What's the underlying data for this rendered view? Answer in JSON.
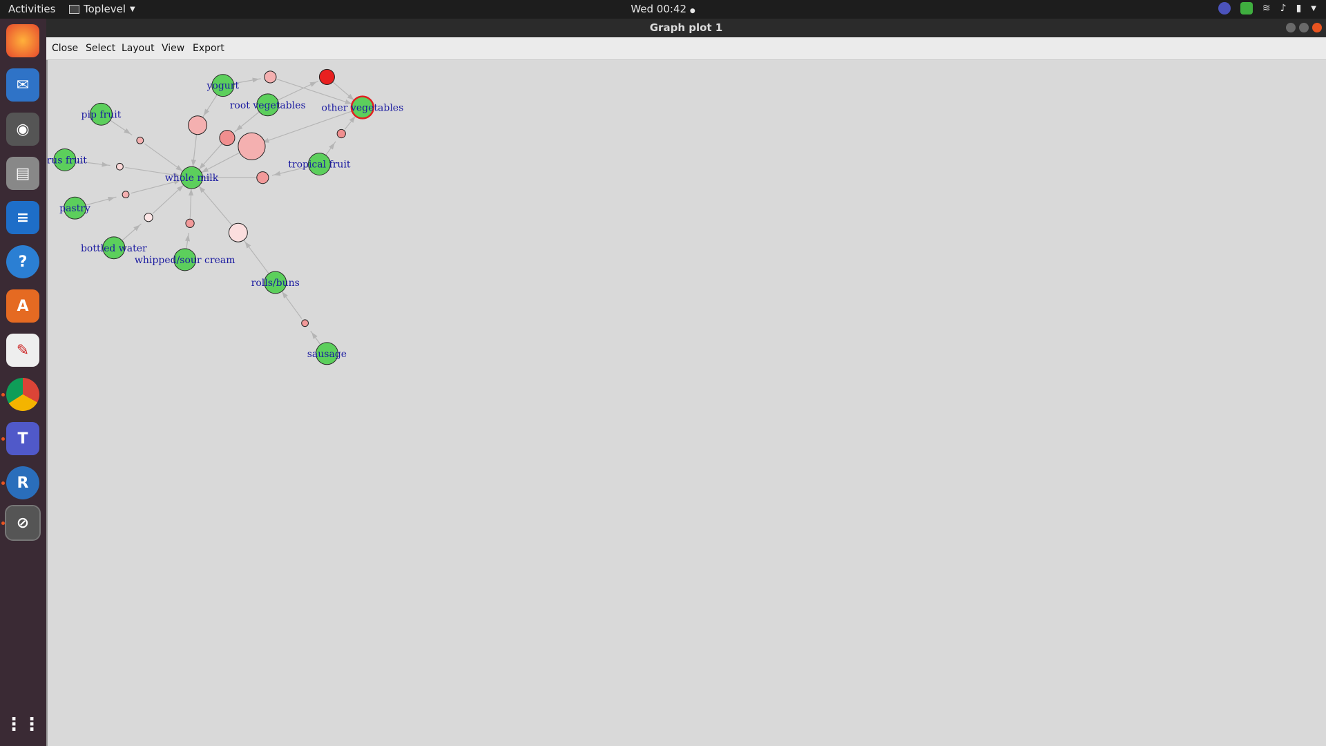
{
  "topbar": {
    "activities": "Activities",
    "app_name": "Toplevel",
    "clock": "Wed 00:42"
  },
  "dock": {
    "items": [
      "firefox-icon",
      "thunderbird-icon",
      "rhythmbox-icon",
      "files-icon",
      "writer-icon",
      "help-icon",
      "software-icon",
      "document-viewer-icon",
      "chrome-icon",
      "teams-icon",
      "r-icon",
      "graph-window-icon"
    ]
  },
  "window": {
    "title": "Graph plot 1",
    "menu": [
      "Close",
      "Select",
      "Layout",
      "View",
      "Export"
    ]
  },
  "graph": {
    "items": [
      {
        "label": "yogurt"
      },
      {
        "label": "root vegetables"
      },
      {
        "label": "other vegetables"
      },
      {
        "label": "pip fruit"
      },
      {
        "label": "tropical fruit"
      },
      {
        "label": "citrus fruit"
      },
      {
        "label": "whole milk"
      },
      {
        "label": "pastry"
      },
      {
        "label": "bottled water"
      },
      {
        "label": "whipped/sour cream"
      },
      {
        "label": "rolls/buns"
      },
      {
        "label": "sausage"
      }
    ],
    "label_display": [
      "yogurt",
      "root vegetables",
      "other vegetables",
      "pip fruit",
      "tropical fruit",
      "trus fruit",
      "whole milk",
      "pastry",
      "bottled water",
      "whipped/sour cream",
      "rolls/buns",
      "sausage"
    ],
    "colors": {
      "item": "#5ccf5c",
      "rule_light": "#f4b0b0",
      "rule_dark": "#e82020",
      "edge": "#b5b5b5",
      "label": "#1a1aa0"
    }
  }
}
